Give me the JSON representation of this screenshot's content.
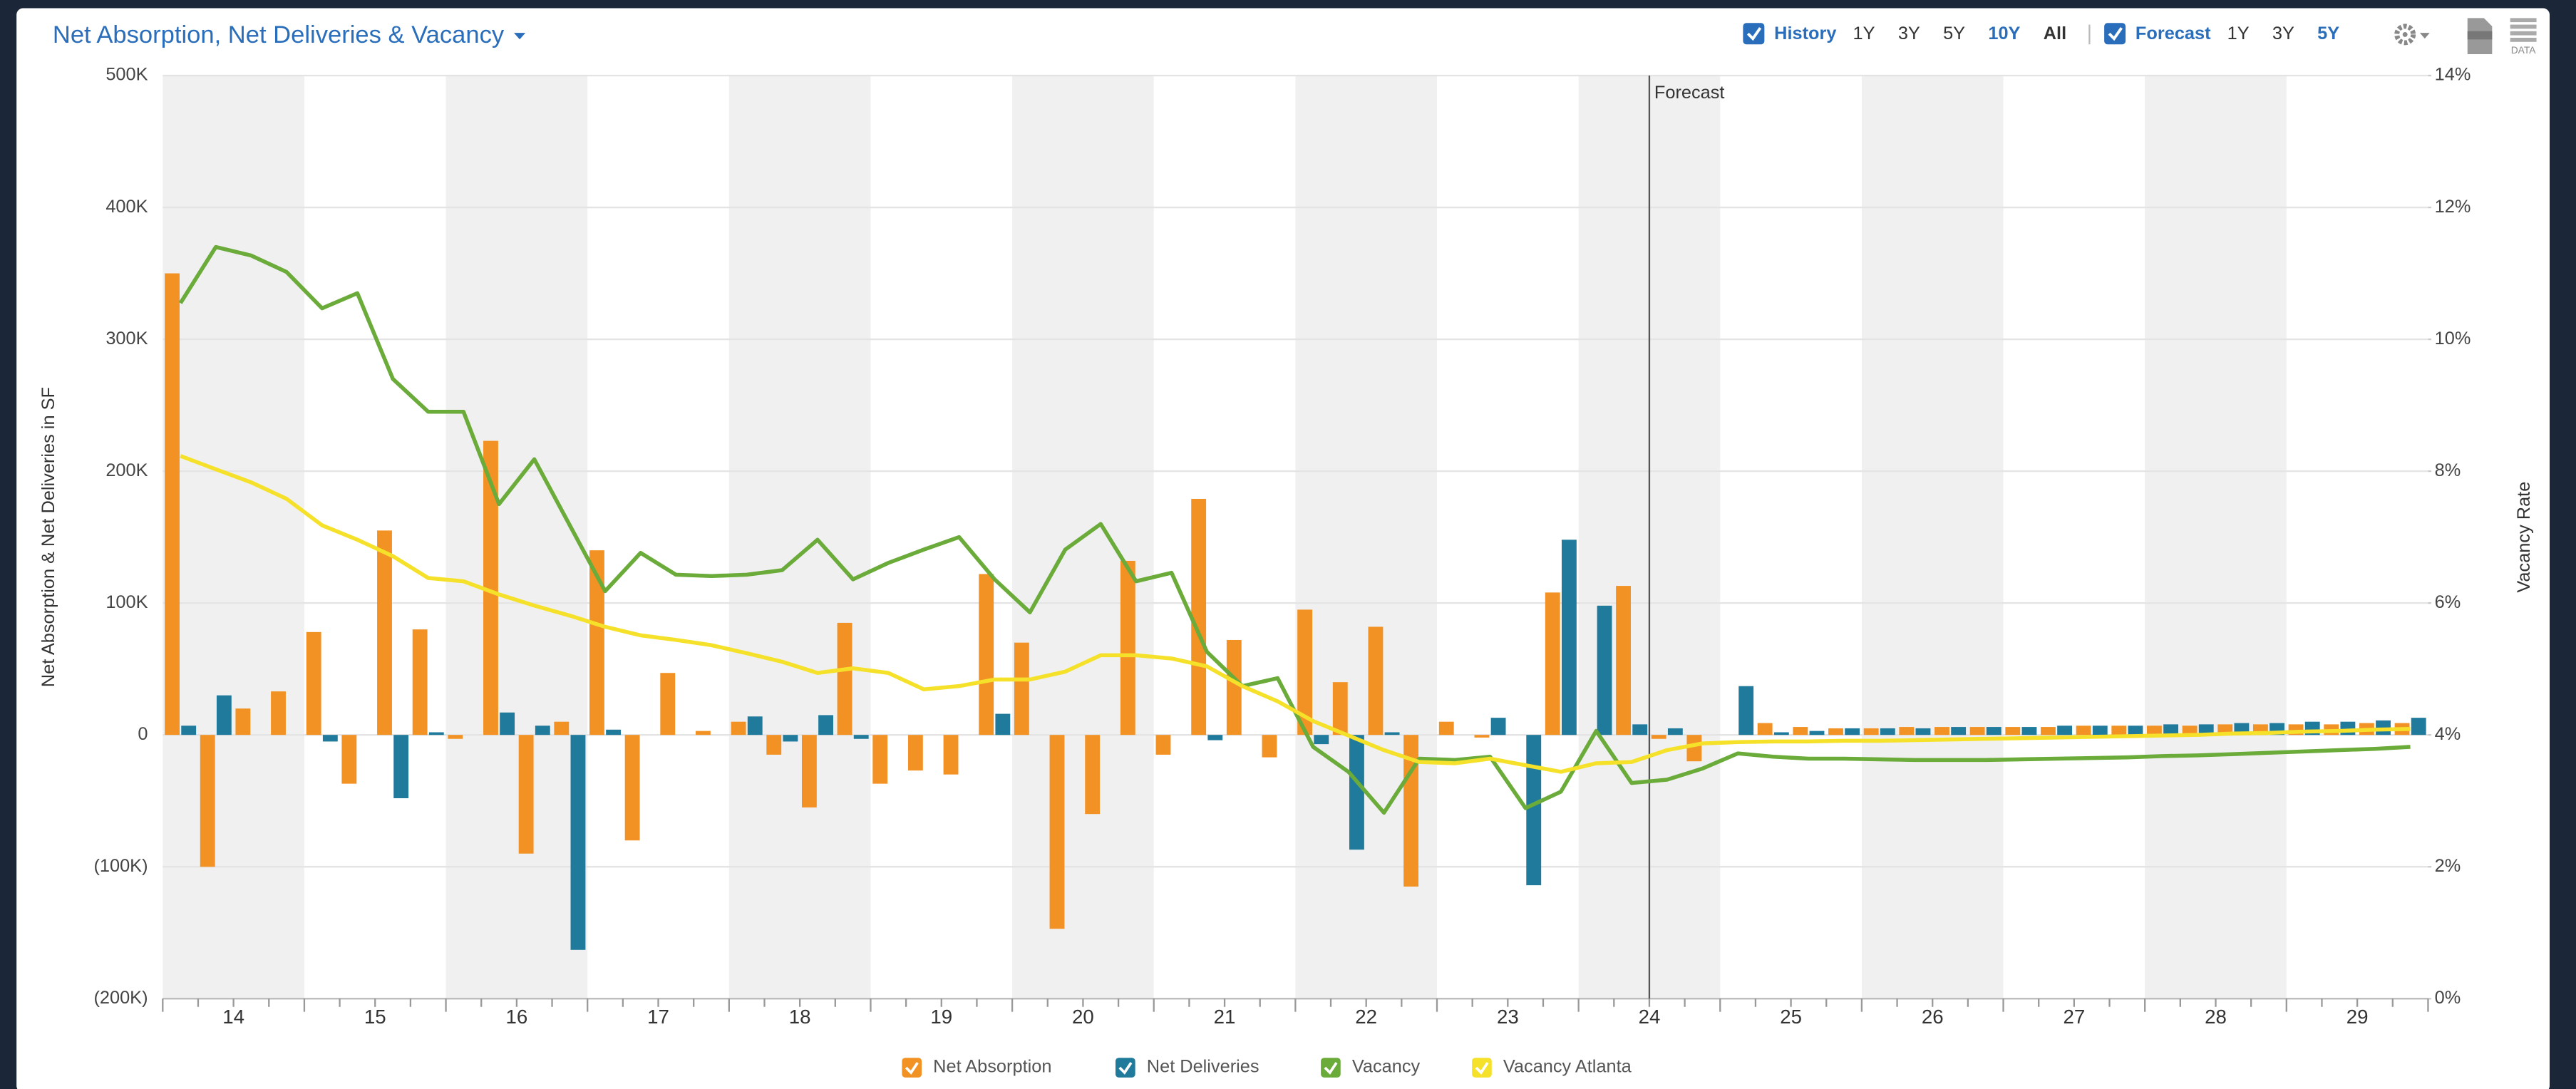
{
  "toolbar": {
    "history": {
      "label": "History",
      "checked": true,
      "ranges": [
        "1Y",
        "3Y",
        "5Y",
        "10Y",
        "All"
      ],
      "selected": "10Y"
    },
    "forecast": {
      "label": "Forecast",
      "checked": true,
      "ranges": [
        "1Y",
        "3Y",
        "5Y"
      ],
      "selected": "5Y"
    },
    "data_button": "DATA"
  },
  "chart_data": {
    "type": "combo",
    "title": "Net Absorption, Net Deliveries & Vacancy",
    "y_label": "Net Absorption & Net Deliveries in SF",
    "y2_label": "Vacancy Rate",
    "annotation": "Forecast",
    "year_labels": [
      "14",
      "15",
      "16",
      "17",
      "18",
      "19",
      "20",
      "21",
      "22",
      "23",
      "24",
      "25",
      "26",
      "27",
      "28",
      "29"
    ],
    "ylim": [
      -200000,
      500000
    ],
    "yticks": [
      {
        "value": -200000,
        "label": "(200K)"
      },
      {
        "value": -100000,
        "label": "(100K)"
      },
      0,
      {
        "value": 100000,
        "label": "100K"
      },
      {
        "value": 200000,
        "label": "200K"
      },
      {
        "value": 300000,
        "label": "300K"
      },
      {
        "value": 400000,
        "label": "400K"
      },
      {
        "value": 500000,
        "label": "500K"
      }
    ],
    "y2lim": [
      0,
      14
    ],
    "y2ticks": [
      {
        "value": 0,
        "label": "0%"
      },
      {
        "value": 2,
        "label": "2%"
      },
      {
        "value": 4,
        "label": "4%"
      },
      {
        "value": 6,
        "label": "6%"
      },
      {
        "value": 8,
        "label": "8%"
      },
      {
        "value": 10,
        "label": "10%"
      },
      {
        "value": 12,
        "label": "12%"
      },
      {
        "value": 14,
        "label": "14%"
      }
    ],
    "grid": true,
    "series": [
      {
        "name": "Net Absorption",
        "type": "bar",
        "color": "#f39224",
        "values": [
          350000,
          -100000,
          20000,
          33000,
          78000,
          -37000,
          155000,
          80000,
          -3000,
          223000,
          -90000,
          10000,
          140000,
          -80000,
          47000,
          3000,
          10000,
          -15000,
          -55000,
          85000,
          -37000,
          -27000,
          -30000,
          122000,
          70000,
          -147000,
          -60000,
          132000,
          -15000,
          179000,
          72000,
          -17000,
          95000,
          40000,
          82000,
          -115000,
          10000,
          -2000,
          0,
          108000,
          0,
          113000,
          -3000,
          -20000,
          0,
          9000,
          6000,
          5000,
          5000,
          6000,
          6000,
          6000,
          6000,
          6000,
          7000,
          7000,
          7000,
          7000,
          8000,
          8000,
          8000,
          8000,
          9000,
          9000
        ]
      },
      {
        "name": "Net Deliveries",
        "type": "bar",
        "color": "#1f7a9c",
        "values": [
          7000,
          30000,
          0,
          0,
          -5000,
          0,
          -48000,
          2000,
          0,
          17000,
          7000,
          -163000,
          4000,
          0,
          0,
          0,
          14000,
          -5000,
          15000,
          -3000,
          0,
          0,
          0,
          16000,
          0,
          0,
          0,
          0,
          0,
          -4000,
          0,
          0,
          -7000,
          -87000,
          2000,
          0,
          0,
          13000,
          -114000,
          148000,
          98000,
          8000,
          5000,
          0,
          37000,
          2000,
          3000,
          5000,
          5000,
          5000,
          6000,
          6000,
          6000,
          7000,
          7000,
          7000,
          8000,
          8000,
          9000,
          9000,
          10000,
          10000,
          11000,
          13000
        ]
      },
      {
        "name": "Vacancy",
        "type": "line",
        "axis": "y2",
        "color": "#6aab3a",
        "values": [
          10.55,
          11.4,
          11.27,
          11.02,
          10.47,
          10.7,
          9.4,
          8.9,
          8.9,
          7.5,
          8.18,
          7.18,
          6.18,
          6.76,
          6.43,
          6.41,
          6.43,
          6.5,
          6.96,
          6.36,
          6.61,
          6.81,
          7.0,
          6.36,
          5.86,
          6.81,
          7.2,
          6.33,
          6.46,
          5.26,
          4.74,
          4.86,
          3.82,
          3.44,
          2.82,
          3.64,
          3.62,
          3.67,
          2.89,
          3.14,
          4.06,
          3.27,
          3.32,
          3.49,
          3.72,
          3.67,
          3.64,
          3.64,
          3.63,
          3.62,
          3.62,
          3.62,
          3.63,
          3.64,
          3.65,
          3.66,
          3.68,
          3.69,
          3.71,
          3.73,
          3.75,
          3.77,
          3.79,
          3.82
        ]
      },
      {
        "name": "Vacancy Atlanta",
        "type": "line",
        "axis": "y2",
        "color": "#f5e12a",
        "values": [
          8.23,
          8.03,
          7.83,
          7.58,
          7.18,
          6.96,
          6.71,
          6.38,
          6.33,
          6.13,
          5.96,
          5.81,
          5.64,
          5.51,
          5.44,
          5.36,
          5.24,
          5.11,
          4.94,
          5.01,
          4.94,
          4.69,
          4.74,
          4.84,
          4.84,
          4.96,
          5.21,
          5.21,
          5.16,
          5.04,
          4.74,
          4.51,
          4.21,
          3.99,
          3.77,
          3.59,
          3.57,
          3.64,
          3.54,
          3.44,
          3.57,
          3.59,
          3.77,
          3.87,
          3.89,
          3.9,
          3.9,
          3.91,
          3.91,
          3.92,
          3.93,
          3.94,
          3.95,
          3.96,
          3.97,
          3.98,
          3.99,
          4.0,
          4.02,
          4.03,
          4.05,
          4.06,
          4.08,
          4.09
        ]
      }
    ]
  }
}
